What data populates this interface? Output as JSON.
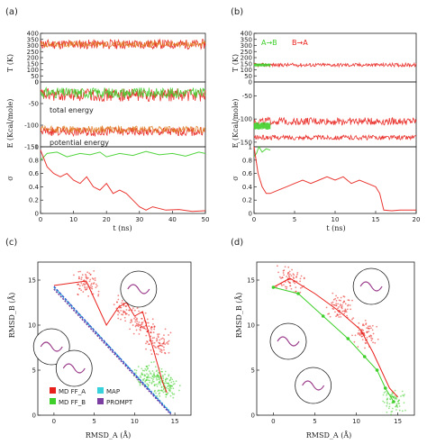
{
  "panel_labels": {
    "a": "(a)",
    "b": "(b)",
    "c": "(c)",
    "d": "(d)"
  },
  "annotations": {
    "a_total": "total energy",
    "a_potential": "potential energy",
    "b_ab": "A→B",
    "b_ba": "B→A"
  },
  "axis_labels": {
    "T": "T (K)",
    "E": "E (Kcal/mole)",
    "sigma": "σ",
    "t": "t (ns)",
    "rmsd_b": "RMSD_B (Å)",
    "rmsd_a": "RMSD_A (Å)"
  },
  "legend_c": {
    "md_a": "MD FF_A",
    "md_b": "MD FF_B",
    "map": "MAP",
    "prompt": "PROMPT"
  },
  "colors": {
    "red": "#e8201b",
    "green": "#3fcf2a",
    "cyan": "#37d2dc",
    "purple": "#7a3fa0",
    "blue": "#3355cc",
    "orange": "#e07a20"
  },
  "chart_data": [
    {
      "panel": "a",
      "type": "line",
      "x_range": [
        0,
        50
      ],
      "x_ticks": [
        0,
        10,
        20,
        30,
        40,
        50
      ],
      "subplots": [
        {
          "name": "T",
          "ylim": [
            0,
            400
          ],
          "yticks": [
            0,
            50,
            100,
            150,
            200,
            250,
            300,
            350,
            400
          ],
          "series": [
            {
              "color": "red",
              "mean": 310,
              "spread": 40
            },
            {
              "color": "orange",
              "mean": 310,
              "spread": 25
            }
          ]
        },
        {
          "name": "E",
          "ylim": [
            -150,
            0
          ],
          "yticks": [
            -150,
            -100,
            -50,
            0
          ],
          "series": [
            {
              "color": "red",
              "mean": -30,
              "spread": 15
            },
            {
              "color": "green",
              "mean": -25,
              "spread": 12
            },
            {
              "color": "red",
              "mean": -115,
              "spread": 10
            },
            {
              "color": "orange",
              "mean": -110,
              "spread": 8
            }
          ]
        },
        {
          "name": "sigma",
          "ylim": [
            0,
            1
          ],
          "yticks": [
            0,
            0.2,
            0.4,
            0.6,
            0.8,
            1
          ],
          "series": [
            {
              "color": "green",
              "x": [
                0,
                2,
                5,
                8,
                12,
                15,
                18,
                20,
                24,
                28,
                32,
                36,
                40,
                44,
                48,
                50
              ],
              "y": [
                0.8,
                0.9,
                0.92,
                0.85,
                0.9,
                0.88,
                0.92,
                0.85,
                0.9,
                0.87,
                0.93,
                0.88,
                0.9,
                0.86,
                0.92,
                0.9
              ]
            },
            {
              "color": "red",
              "x": [
                0,
                2,
                4,
                6,
                8,
                10,
                12,
                14,
                16,
                18,
                20,
                22,
                24,
                26,
                28,
                30,
                32,
                34,
                38,
                42,
                46,
                50
              ],
              "y": [
                0.95,
                0.7,
                0.6,
                0.55,
                0.6,
                0.5,
                0.45,
                0.55,
                0.4,
                0.35,
                0.45,
                0.3,
                0.35,
                0.3,
                0.2,
                0.1,
                0.05,
                0.1,
                0.05,
                0.06,
                0.03,
                0.04
              ]
            }
          ]
        }
      ]
    },
    {
      "panel": "b",
      "type": "line",
      "x_range": [
        0,
        20
      ],
      "x_ticks": [
        0,
        5,
        10,
        15,
        20
      ],
      "subplots": [
        {
          "name": "T",
          "ylim": [
            0,
            400
          ],
          "yticks": [
            0,
            50,
            100,
            150,
            200,
            250,
            300,
            350,
            400
          ],
          "series": [
            {
              "color": "red",
              "mean": 140,
              "spread": 15
            },
            {
              "color": "green",
              "mean": 140,
              "spread": 12,
              "x_max": 2
            }
          ]
        },
        {
          "name": "E",
          "ylim": [
            -160,
            -20
          ],
          "yticks": [
            -150,
            -100,
            -50,
            0
          ],
          "series": [
            {
              "color": "red",
              "mean": -105,
              "spread": 8
            },
            {
              "color": "red",
              "mean": -140,
              "spread": 5
            },
            {
              "color": "green",
              "mean": -115,
              "spread": 8,
              "x_max": 2
            }
          ]
        },
        {
          "name": "sigma",
          "ylim": [
            0,
            1
          ],
          "yticks": [
            0,
            0.2,
            0.4,
            0.6,
            0.8,
            1
          ],
          "series": [
            {
              "color": "green",
              "x": [
                0,
                0.3,
                0.6,
                1,
                1.5,
                2
              ],
              "y": [
                0.85,
                0.9,
                1,
                0.92,
                0.97,
                0.95
              ]
            },
            {
              "color": "red",
              "x": [
                0,
                0.5,
                1,
                1.5,
                2,
                3,
                4,
                5,
                6,
                7,
                8,
                9,
                10,
                11,
                12,
                13,
                14,
                15,
                15.5,
                16,
                17,
                18,
                19,
                20
              ],
              "y": [
                1,
                0.6,
                0.4,
                0.3,
                0.3,
                0.35,
                0.4,
                0.45,
                0.5,
                0.45,
                0.5,
                0.55,
                0.5,
                0.55,
                0.45,
                0.5,
                0.45,
                0.4,
                0.3,
                0.05,
                0.04,
                0.05,
                0.05,
                0.05
              ]
            }
          ]
        }
      ]
    },
    {
      "panel": "c",
      "type": "scatter",
      "xlim": [
        -2,
        17
      ],
      "ylim": [
        0,
        17
      ],
      "x_ticks": [
        0,
        5,
        10,
        15
      ],
      "y_ticks": [
        0,
        5,
        10,
        15
      ],
      "series": [
        {
          "name": "MD FF_A",
          "color": "red",
          "clusters": [
            [
              4,
              14.5
            ],
            [
              9,
              12
            ],
            [
              11,
              10
            ],
            [
              13,
              8
            ]
          ]
        },
        {
          "name": "MD FF_B",
          "color": "green",
          "clusters": [
            [
              11.5,
              4.5
            ],
            [
              13,
              4
            ],
            [
              14,
              3
            ]
          ]
        },
        {
          "name": "MAP",
          "color": "cyan",
          "x": [
            0,
            14.5
          ],
          "y": [
            14.2,
            0.3
          ]
        },
        {
          "name": "PROMPT",
          "color": "purple",
          "x": [
            0,
            14.5
          ],
          "y": [
            14.0,
            0.1
          ]
        }
      ],
      "paths": [
        {
          "color": "red",
          "x": [
            0,
            4,
            6.5,
            8,
            9,
            10,
            11,
            13.5,
            14
          ],
          "y": [
            14.4,
            14.9,
            10,
            12,
            12.5,
            11,
            11.5,
            3.6,
            2.5
          ]
        },
        {
          "color": "blue",
          "x": [
            0,
            14.5
          ],
          "y": [
            14.3,
            0.2
          ]
        }
      ]
    },
    {
      "panel": "d",
      "type": "scatter",
      "xlim": [
        -2,
        17
      ],
      "ylim": [
        0,
        17
      ],
      "x_ticks": [
        0,
        5,
        10,
        15
      ],
      "y_ticks": [
        0,
        5,
        10,
        15
      ],
      "series": [
        {
          "name": "MD FF_A",
          "color": "red",
          "clusters": [
            [
              2,
              15
            ],
            [
              8,
              12
            ],
            [
              11,
              9
            ]
          ]
        },
        {
          "name": "MD FF_B",
          "color": "green",
          "clusters": [
            [
              14.5,
              1.5
            ]
          ]
        }
      ],
      "paths": [
        {
          "color": "red",
          "x": [
            0,
            2,
            5,
            8,
            10.5,
            12,
            14,
            15
          ],
          "y": [
            14.2,
            15.2,
            13.5,
            11.5,
            9.5,
            7,
            3,
            2
          ]
        },
        {
          "color": "green",
          "x": [
            0,
            3,
            6,
            9,
            11,
            12.5,
            13.5,
            14.5
          ],
          "y": [
            14.2,
            13.5,
            11,
            8.5,
            6.5,
            5,
            3,
            1.5
          ]
        }
      ]
    }
  ]
}
